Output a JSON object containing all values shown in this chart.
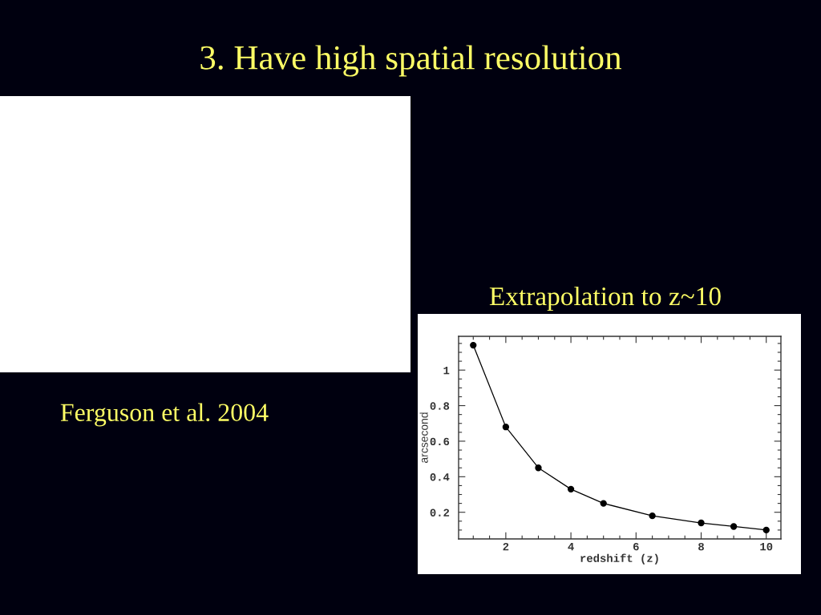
{
  "chart_data": {
    "type": "line",
    "title": "3. Have high spatial resolution",
    "subtitle": "Extrapolation to z~10",
    "xlabel": "redshift (z)",
    "ylabel": "arcsecond",
    "annotations": [
      "Ferguson et al. 2004"
    ],
    "x": [
      1,
      2,
      3,
      4,
      5,
      6.5,
      8,
      9,
      10
    ],
    "series": [
      {
        "color": "#000000",
        "values": [
          1.14,
          0.68,
          0.45,
          0.33,
          0.25,
          0.18,
          0.14,
          0.12,
          0.1
        ]
      }
    ],
    "xlim": [
      0.55,
      10.45
    ],
    "ylim": [
      0.05,
      1.19
    ],
    "xticks": [
      {
        "value": 1,
        "label": null
      },
      {
        "value": 1.5,
        "label": null
      },
      2,
      {
        "value": 2.5,
        "label": null
      },
      {
        "value": 3,
        "label": null
      },
      {
        "value": 3.5,
        "label": null
      },
      4,
      {
        "value": 4.5,
        "label": null
      },
      {
        "value": 5,
        "label": null
      },
      {
        "value": 5.5,
        "label": null
      },
      6,
      {
        "value": 6.5,
        "label": null
      },
      {
        "value": 7,
        "label": null
      },
      {
        "value": 7.5,
        "label": null
      },
      8,
      {
        "value": 8.5,
        "label": null
      },
      {
        "value": 9,
        "label": null
      },
      {
        "value": 9.5,
        "label": null
      },
      10
    ],
    "yticks": [
      {
        "value": 0.1,
        "label": null
      },
      {
        "value": 0.15,
        "label": null
      },
      0.2,
      {
        "value": 0.25,
        "label": null
      },
      {
        "value": 0.3,
        "label": null
      },
      {
        "value": 0.35,
        "label": null
      },
      0.4,
      {
        "value": 0.45,
        "label": null
      },
      {
        "value": 0.5,
        "label": null
      },
      {
        "value": 0.55,
        "label": null
      },
      0.6,
      {
        "value": 0.65,
        "label": null
      },
      {
        "value": 0.7,
        "label": null
      },
      {
        "value": 0.75,
        "label": null
      },
      0.8,
      {
        "value": 0.85,
        "label": null
      },
      {
        "value": 0.9,
        "label": null
      },
      {
        "value": 0.95,
        "label": null
      },
      1,
      {
        "value": 1.05,
        "label": null
      },
      {
        "value": 1.1,
        "label": null
      },
      {
        "value": 1.15,
        "label": null
      }
    ],
    "marker": "circle",
    "line_style": "solid",
    "grid": false
  }
}
